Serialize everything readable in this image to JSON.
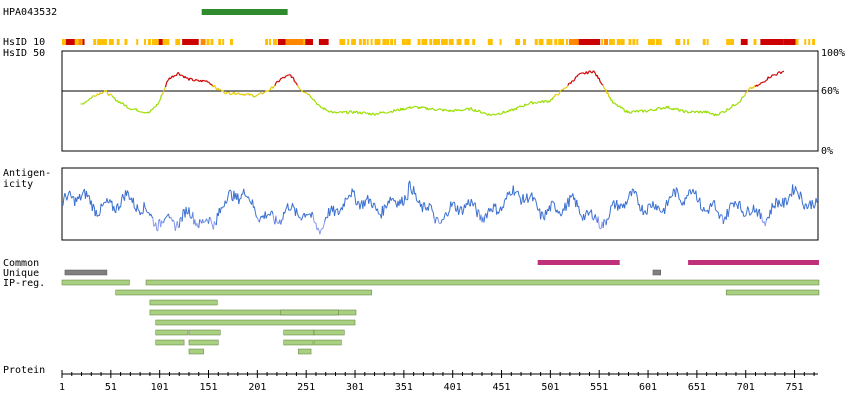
{
  "antigen_id": "HPA043532",
  "colors": {
    "antigen_bar": "#2e8b2e",
    "identity_high": "#cc0000",
    "identity_mid": "#ff8800",
    "identity_low": "#ffc000",
    "identity_line_high": "#cc0000",
    "identity_line_mid": "#e6c800",
    "identity_line_low": "#99dd00",
    "antigenicity_line": "#3a6fd0",
    "antigenicity_low": "#8899ee",
    "common": "#c0307a",
    "unique": "#808080",
    "ipreg": "#a8d080",
    "ipreg_border": "#5a7a3a"
  },
  "chart_data": [
    {
      "type": "line",
      "name": "identity",
      "labels": [
        "HsID 10",
        "HsID 50"
      ],
      "y_ticks": [
        "100%",
        "60%",
        "0%"
      ],
      "ylim": [
        0,
        100
      ],
      "xlim": [
        1,
        775
      ],
      "threshold": 60,
      "x": [
        20,
        35,
        45,
        55,
        70,
        90,
        100,
        110,
        120,
        130,
        140,
        150,
        160,
        170,
        180,
        200,
        215,
        225,
        235,
        245,
        255,
        265,
        280,
        300,
        320,
        340,
        360,
        380,
        400,
        420,
        440,
        460,
        480,
        500,
        515,
        530,
        545,
        555,
        565,
        580,
        600,
        620,
        640,
        660,
        670,
        680,
        695,
        705,
        715,
        725,
        740
      ],
      "values": [
        46,
        56,
        60,
        52,
        43,
        38,
        48,
        72,
        78,
        72,
        70,
        70,
        62,
        58,
        58,
        55,
        62,
        72,
        76,
        62,
        56,
        44,
        38,
        39,
        37,
        40,
        44,
        42,
        40,
        42,
        36,
        40,
        48,
        50,
        62,
        76,
        80,
        66,
        48,
        39,
        40,
        44,
        39,
        39,
        36,
        40,
        50,
        62,
        66,
        74,
        80
      ],
      "identity_track": [
        [
          5,
          14,
          "high"
        ],
        [
          18,
          21,
          "mid"
        ],
        [
          22,
          24,
          "high"
        ],
        [
          24,
          60,
          "segments"
        ],
        [
          100,
          104,
          "high"
        ],
        [
          124,
          141,
          "high"
        ],
        [
          143,
          148,
          "mid"
        ],
        [
          222,
          230,
          "high"
        ],
        [
          230,
          248,
          "mid"
        ],
        [
          250,
          258,
          "high"
        ],
        [
          264,
          274,
          "high"
        ],
        [
          520,
          530,
          "mid"
        ],
        [
          530,
          552,
          "high"
        ],
        [
          556,
          560,
          "mid"
        ],
        [
          696,
          703,
          "high"
        ],
        [
          716,
          740,
          "high"
        ],
        [
          740,
          752,
          "high"
        ]
      ]
    },
    {
      "type": "line",
      "name": "antigenicity",
      "labels": [
        "Antigen-",
        "icity"
      ],
      "xlim": [
        1,
        775
      ]
    },
    {
      "type": "table",
      "name": "features",
      "labels": [
        "Common",
        "Unique",
        "IP-reg.",
        "Protein"
      ],
      "x_ticks": [
        "1",
        "51",
        "101",
        "151",
        "201",
        "251",
        "301",
        "351",
        "401",
        "451",
        "501",
        "551",
        "601",
        "651",
        "701",
        "751"
      ],
      "x_tick_values": [
        1,
        51,
        101,
        151,
        201,
        251,
        301,
        351,
        401,
        451,
        501,
        551,
        601,
        651,
        701,
        751
      ],
      "antigen": [
        144,
        232
      ],
      "common": [
        [
          488,
          572
        ],
        [
          642,
          776
        ]
      ],
      "unique": [
        [
          4,
          47
        ],
        [
          606,
          614
        ]
      ],
      "ipreg": [
        [
          [
            1,
            70
          ],
          [
            87,
            776
          ]
        ],
        [
          [
            56,
            318
          ],
          [
            681,
            776
          ]
        ],
        [
          [
            91,
            160
          ]
        ],
        [
          [
            91,
            302
          ],
          [
            225,
            284
          ]
        ],
        [
          [
            97,
            301
          ]
        ],
        [
          [
            97,
            130
          ],
          [
            131,
            163
          ],
          [
            228,
            259
          ],
          [
            259,
            290
          ]
        ],
        [
          [
            97,
            126
          ],
          [
            131,
            161
          ],
          [
            228,
            258
          ],
          [
            259,
            287
          ]
        ],
        [
          [
            131,
            146
          ],
          [
            243,
            256
          ]
        ]
      ]
    }
  ]
}
